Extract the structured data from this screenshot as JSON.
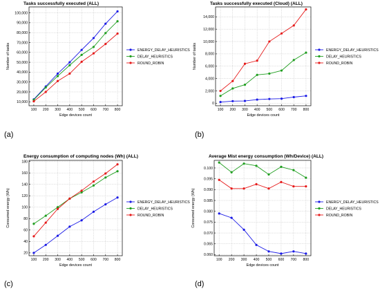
{
  "panel_labels": [
    "(a)",
    "(b)",
    "(c)",
    "(d)"
  ],
  "series_colors": [
    "#1a1ae6",
    "#1f9e1f",
    "#e61a1a"
  ],
  "chart_data": [
    {
      "type": "line",
      "title": "Tasks successfully executed (ALL)",
      "xlabel": "Edge devices count",
      "ylabel": "Number of tasks",
      "x": [
        100,
        200,
        300,
        400,
        500,
        600,
        700,
        800
      ],
      "xlim": [
        60,
        840
      ],
      "ylim": [
        6000,
        106000
      ],
      "yticks": [
        10000,
        20000,
        30000,
        40000,
        50000,
        60000,
        70000,
        80000,
        90000,
        100000
      ],
      "ytick_labels": [
        "10,000",
        "20,000",
        "30,000",
        "40,000",
        "50,000",
        "60,000",
        "70,000",
        "80,000",
        "90,000",
        "100,000"
      ],
      "grid": true,
      "legend_position": "center-right",
      "series": [
        {
          "name": "ENERGY_DELAY_HEURISTICS",
          "values": [
            12500,
            25500,
            38500,
            50000,
            62500,
            74500,
            89000,
            101500
          ]
        },
        {
          "name": "DELAY_HEURISTICS",
          "values": [
            12000,
            24500,
            36000,
            47000,
            57500,
            65500,
            79500,
            91500
          ]
        },
        {
          "name": "ROUND_ROBIN",
          "values": [
            10500,
            20000,
            31000,
            38500,
            50500,
            59000,
            68500,
            79000
          ]
        }
      ]
    },
    {
      "type": "line",
      "title": "Tasks successfully executed (Cloud) (ALL)",
      "xlabel": "Edge devices count",
      "ylabel": "Number of tasks",
      "x": [
        100,
        200,
        300,
        400,
        500,
        600,
        700,
        800
      ],
      "xlim": [
        60,
        840
      ],
      "ylim": [
        -400,
        15600
      ],
      "yticks": [
        0,
        2000,
        4000,
        6000,
        8000,
        10000,
        12000,
        14000
      ],
      "ytick_labels": [
        "0",
        "2,000",
        "4,000",
        "6,000",
        "8,000",
        "10,000",
        "12,000",
        "14,000"
      ],
      "grid": true,
      "legend_position": "center-right",
      "series": [
        {
          "name": "ENERGY_DELAY_HEURISTICS",
          "values": [
            200,
            350,
            380,
            600,
            700,
            750,
            1000,
            1200
          ]
        },
        {
          "name": "DELAY_HEURISTICS",
          "values": [
            1200,
            2400,
            3000,
            4600,
            4800,
            5300,
            7000,
            8200
          ]
        },
        {
          "name": "ROUND_ROBIN",
          "values": [
            2000,
            3600,
            6400,
            6900,
            10000,
            11300,
            12600,
            15200
          ]
        }
      ]
    },
    {
      "type": "line",
      "title": "Energy consumption of computing nodes (Wh) (ALL)",
      "xlabel": "Edge devices count",
      "ylabel": "Consumed energy (Wh)",
      "x": [
        100,
        200,
        300,
        400,
        500,
        600,
        700,
        800
      ],
      "xlim": [
        60,
        840
      ],
      "ylim": [
        15,
        182
      ],
      "yticks": [
        20,
        40,
        60,
        80,
        100,
        120,
        140,
        160,
        180
      ],
      "ytick_labels": [
        "20",
        "40",
        "60",
        "80",
        "100",
        "120",
        "140",
        "160",
        "180"
      ],
      "grid": true,
      "legend_position": "center-right",
      "series": [
        {
          "name": "ENERGY_DELAY_HEURISTICS",
          "values": [
            20,
            34,
            50,
            66,
            77,
            92,
            105,
            117
          ]
        },
        {
          "name": "DELAY_HEURISTICS",
          "values": [
            71,
            85,
            100,
            115,
            126,
            138,
            152,
            163
          ]
        },
        {
          "name": "ROUND_ROBIN",
          "values": [
            49,
            73,
            97,
            115,
            129,
            145,
            159,
            175
          ]
        }
      ]
    },
    {
      "type": "line",
      "title": "Average Mist energy consumption (Wh/Device) (ALL)",
      "xlabel": "Edge devices count",
      "ylabel": "Consumed energy (Wh)",
      "x": [
        100,
        200,
        300,
        400,
        500,
        600,
        700,
        800
      ],
      "xlim": [
        60,
        840
      ],
      "ylim": [
        0.0595,
        0.1035
      ],
      "yticks": [
        0.06,
        0.065,
        0.07,
        0.075,
        0.08,
        0.085,
        0.09,
        0.095,
        0.1
      ],
      "ytick_labels": [
        "0.060",
        "0.065",
        "0.070",
        "0.075",
        "0.080",
        "0.085",
        "0.090",
        "0.095",
        "0.100"
      ],
      "grid": true,
      "legend_position": "center-right",
      "series": [
        {
          "name": "ENERGY_DELAY_HEURISTICS",
          "values": [
            0.079,
            0.077,
            0.0715,
            0.0645,
            0.0615,
            0.0605,
            0.0615,
            0.0605
          ]
        },
        {
          "name": "DELAY_HEURISTICS",
          "values": [
            0.1025,
            0.098,
            0.102,
            0.101,
            0.097,
            0.1005,
            0.099,
            0.0955
          ]
        },
        {
          "name": "ROUND_ROBIN",
          "values": [
            0.0945,
            0.0905,
            0.0905,
            0.0925,
            0.0905,
            0.0935,
            0.0915,
            0.0915
          ]
        }
      ]
    }
  ]
}
